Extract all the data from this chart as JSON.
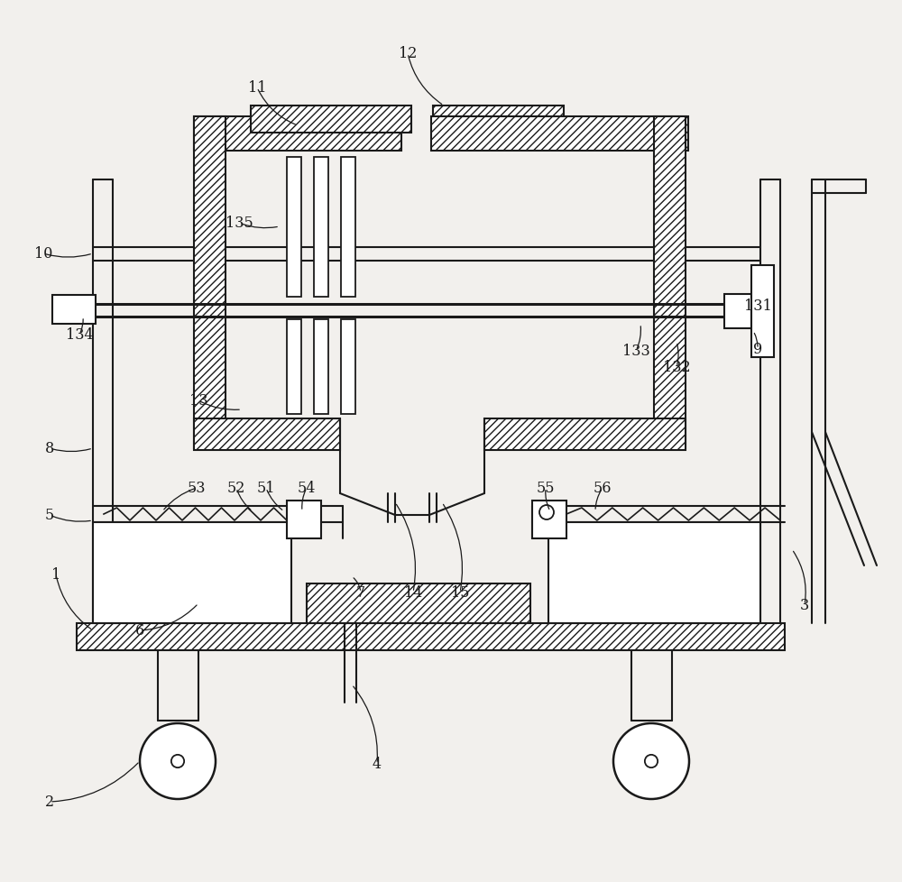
{
  "bg_color": "#f2f0ed",
  "line_color": "#1a1a1a",
  "labels": [
    [
      "1",
      62,
      638,
      103,
      700,
      0.2
    ],
    [
      "2",
      55,
      890,
      155,
      845,
      0.2
    ],
    [
      "3",
      892,
      672,
      878,
      610,
      0.2
    ],
    [
      "4",
      418,
      848,
      390,
      760,
      0.2
    ],
    [
      "5",
      55,
      572,
      103,
      578,
      0.15
    ],
    [
      "6",
      155,
      700,
      220,
      670,
      0.2
    ],
    [
      "7",
      400,
      658,
      390,
      640,
      0.2
    ],
    [
      "8",
      55,
      498,
      103,
      498,
      0.15
    ],
    [
      "9",
      840,
      388,
      835,
      368,
      0.15
    ],
    [
      "10",
      48,
      282,
      103,
      282,
      0.15
    ],
    [
      "11",
      285,
      98,
      330,
      140,
      0.2
    ],
    [
      "12",
      452,
      60,
      492,
      118,
      0.2
    ],
    [
      "13",
      220,
      445,
      268,
      455,
      0.15
    ],
    [
      "14",
      458,
      658,
      438,
      558,
      0.2
    ],
    [
      "15",
      510,
      658,
      490,
      558,
      0.2
    ],
    [
      "51",
      295,
      542,
      315,
      568,
      0.15
    ],
    [
      "52",
      262,
      542,
      280,
      568,
      0.15
    ],
    [
      "53",
      218,
      542,
      180,
      568,
      0.15
    ],
    [
      "54",
      340,
      542,
      335,
      568,
      0.15
    ],
    [
      "55",
      605,
      542,
      610,
      568,
      0.15
    ],
    [
      "56",
      668,
      542,
      660,
      568,
      0.15
    ],
    [
      "131",
      840,
      340,
      828,
      340,
      0.1
    ],
    [
      "132",
      750,
      408,
      750,
      380,
      0.15
    ],
    [
      "133",
      705,
      390,
      710,
      360,
      0.15
    ],
    [
      "134",
      88,
      372,
      92,
      352,
      0.15
    ],
    [
      "135",
      265,
      248,
      310,
      252,
      0.15
    ]
  ]
}
